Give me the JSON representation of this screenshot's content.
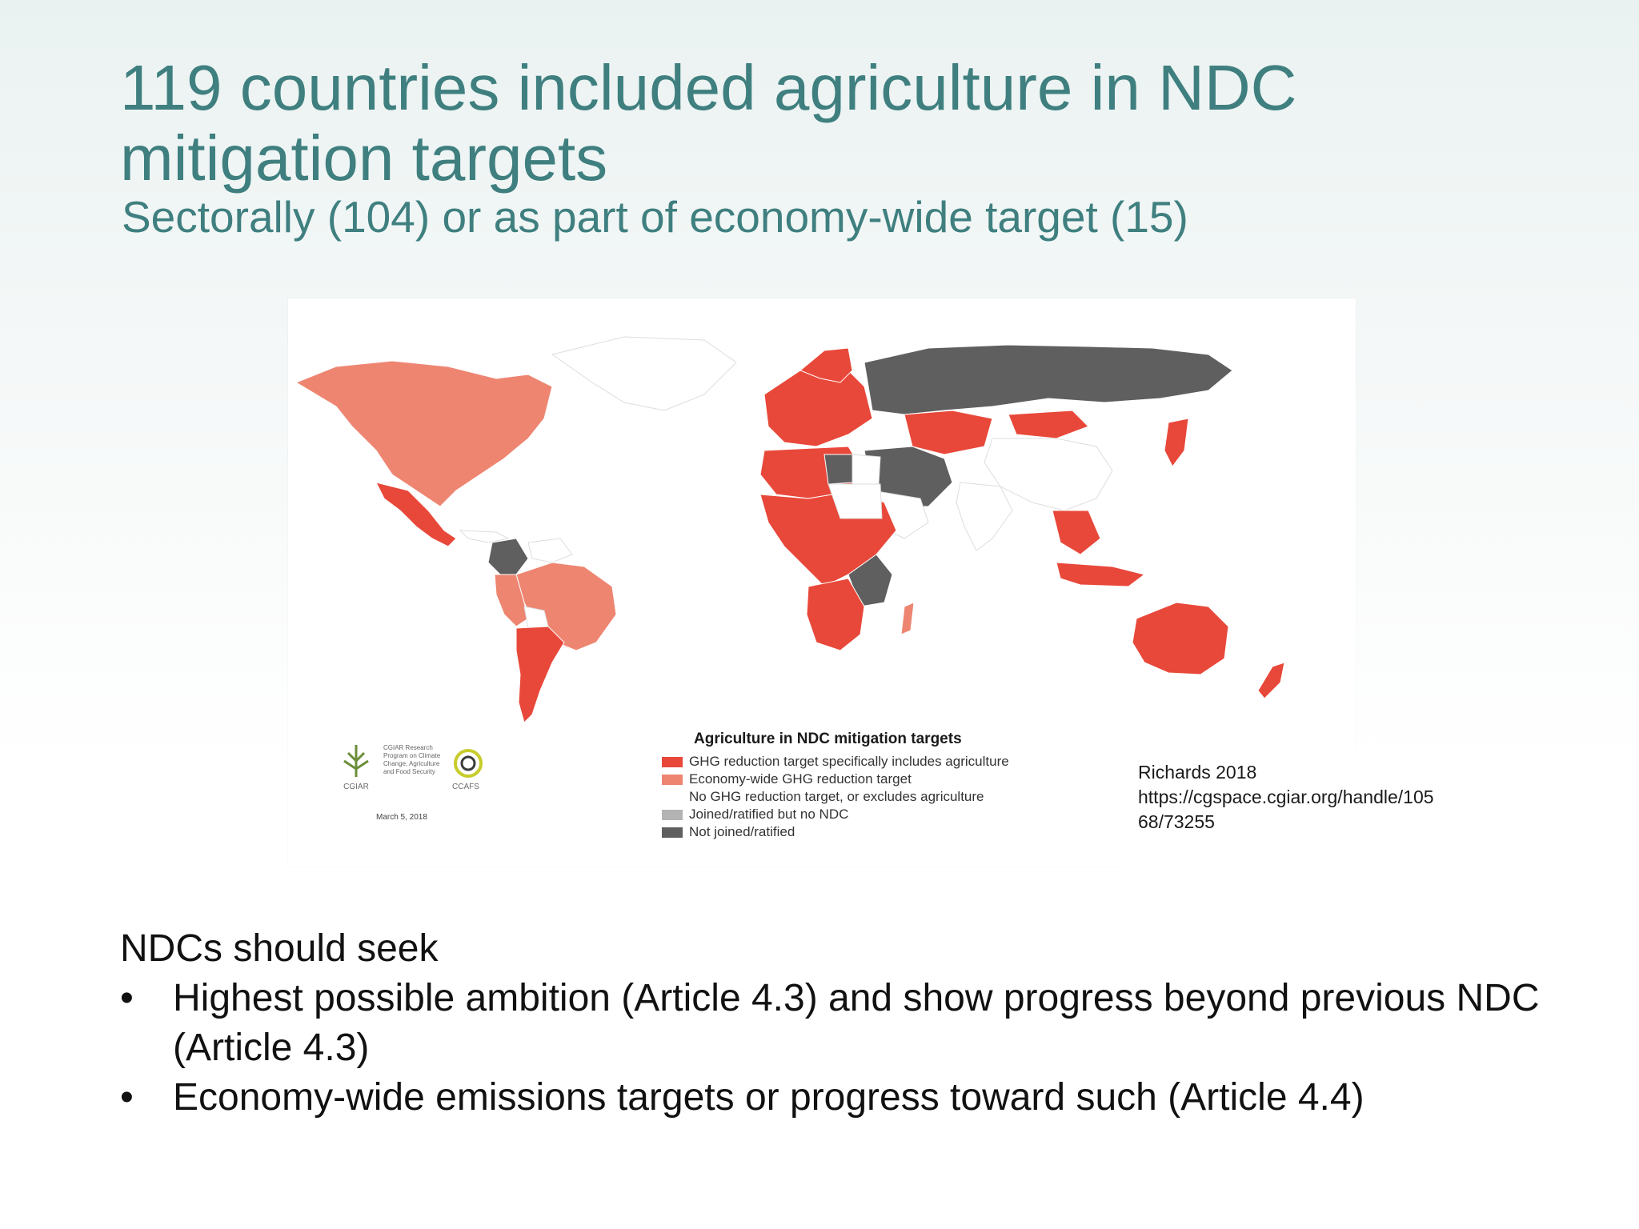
{
  "slide": {
    "title": "119 countries included agriculture in NDC mitigation targets",
    "subtitle": "Sectorally (104) or as part of economy-wide target (15)"
  },
  "map": {
    "legend_title": "Agriculture in NDC mitigation targets",
    "legend": [
      {
        "label": "GHG reduction target specifically includes agriculture",
        "color": "#e8483a"
      },
      {
        "label": "Economy-wide GHG reduction target",
        "color": "#ee8571"
      },
      {
        "label": "No GHG reduction target, or excludes agriculture",
        "color": "#ffffff"
      },
      {
        "label": "Joined/ratified but no NDC",
        "color": "#b3b3b3"
      },
      {
        "label": "Not joined/ratified",
        "color": "#5f5f5f"
      }
    ],
    "logos": {
      "cgiar": "CGIAR",
      "program": "CGIAR Research Program on Climate Change, Agriculture and Food Security",
      "ccafs": "CCAFS",
      "date": "March 5, 2018"
    }
  },
  "citation": {
    "line1": "Richards 2018",
    "line2": "https://cgspace.cgiar.org/handle/105",
    "line3": "68/73255"
  },
  "body": {
    "lead": "NDCs should seek",
    "bullets": [
      "Highest possible ambition (Article 4.3) and show progress beyond previous NDC (Article 4.3)",
      "Economy-wide emissions targets or progress toward such (Article 4.4)"
    ],
    "bullet_symbol": "•"
  }
}
